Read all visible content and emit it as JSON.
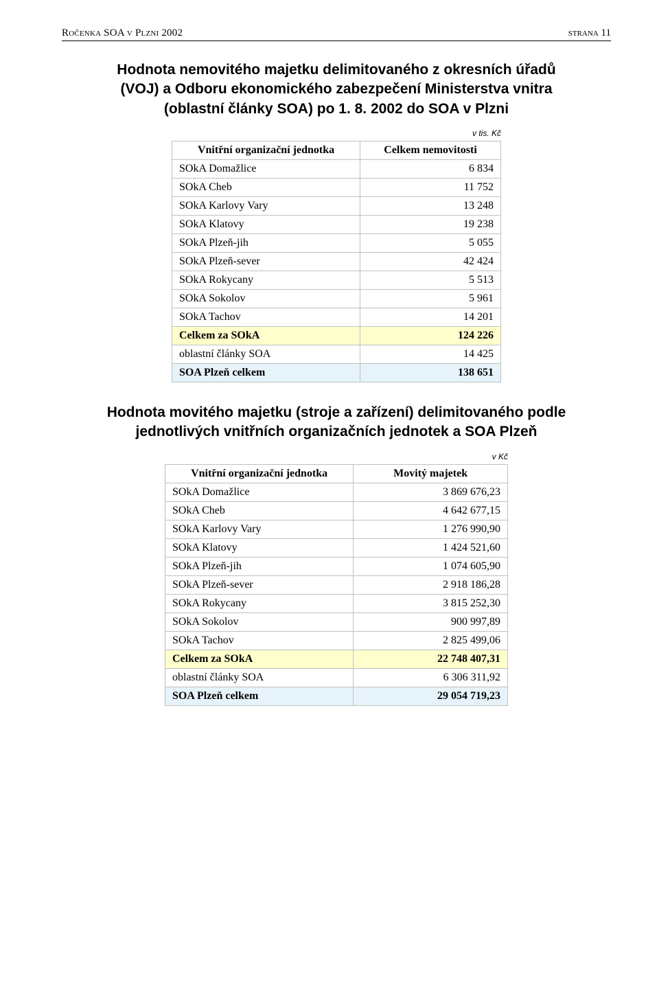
{
  "header": {
    "left": "Ročenka SOA v Plzni 2002",
    "right": "strana 11"
  },
  "section1": {
    "title": "Hodnota nemovitého majetku delimitovaného z okresních úřadů (VOJ) a Odboru ekonomického zabezpečení Ministerstva vnitra (oblastní články SOA) po 1. 8. 2002 do SOA v Plzni",
    "unit_note": "v tis. Kč",
    "col_label": "Vnitřní organizační jednotka",
    "col_value": "Celkem nemovitosti",
    "rows": [
      {
        "label": "SOkA Domažlice",
        "value": "6 834"
      },
      {
        "label": "SOkA Cheb",
        "value": "11 752"
      },
      {
        "label": "SOkA Karlovy Vary",
        "value": "13 248"
      },
      {
        "label": "SOkA Klatovy",
        "value": "19 238"
      },
      {
        "label": "SOkA Plzeň-jih",
        "value": "5 055"
      },
      {
        "label": "SOkA Plzeň-sever",
        "value": "42 424"
      },
      {
        "label": "SOkA Rokycany",
        "value": "5 513"
      },
      {
        "label": "SOkA Sokolov",
        "value": "5 961"
      },
      {
        "label": "SOkA Tachov",
        "value": "14 201"
      }
    ],
    "subtotal": {
      "label": "Celkem za SOkA",
      "value": "124 226"
    },
    "extra": {
      "label": "oblastní články SOA",
      "value": "14 425"
    },
    "total": {
      "label": "SOA Plzeň celkem",
      "value": "138 651"
    }
  },
  "section2": {
    "title": "Hodnota movitého majetku (stroje a zařízení) delimitovaného podle jednotlivých vnitřních organizačních jednotek a SOA Plzeň",
    "unit_note": "v  Kč",
    "col_label": "Vnitřní organizační jednotka",
    "col_value": "Movitý majetek",
    "rows": [
      {
        "label": "SOkA Domažlice",
        "value": "3 869 676,23"
      },
      {
        "label": "SOkA Cheb",
        "value": "4 642 677,15"
      },
      {
        "label": "SOkA Karlovy Vary",
        "value": "1 276 990,90"
      },
      {
        "label": "SOkA Klatovy",
        "value": "1 424 521,60"
      },
      {
        "label": "SOkA Plzeň-jih",
        "value": "1 074 605,90"
      },
      {
        "label": "SOkA Plzeň-sever",
        "value": "2 918 186,28"
      },
      {
        "label": "SOkA Rokycany",
        "value": "3 815 252,30"
      },
      {
        "label": "SOkA Sokolov",
        "value": "900 997,89"
      },
      {
        "label": "SOkA Tachov",
        "value": "2 825 499,06"
      }
    ],
    "subtotal": {
      "label": "Celkem za SOkA",
      "value": "22 748 407,31"
    },
    "extra": {
      "label": "oblastní články SOA",
      "value": "6 306 311,92"
    },
    "total": {
      "label": "SOA Plzeň celkem",
      "value": "29 054 719,23"
    }
  },
  "styling": {
    "highlight_yellow": "#ffffcc",
    "highlight_blue": "#e6f3fa",
    "border_color": "#c0c0c0",
    "body_font": "Times New Roman",
    "title_font": "Arial",
    "title_fontsize_pt": 16,
    "body_fontsize_pt": 12,
    "header_fontsize_pt": 11
  }
}
